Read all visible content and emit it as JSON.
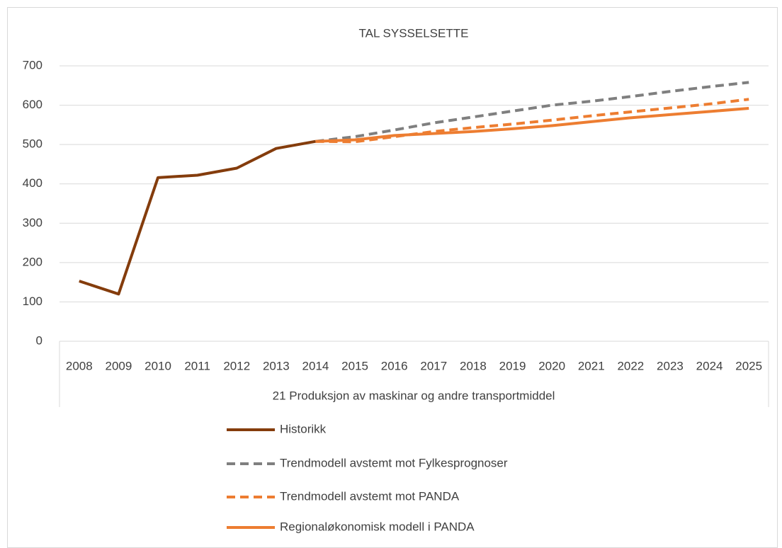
{
  "chart_data": {
    "type": "line",
    "title": "TAL SYSSELSETTE",
    "categories": [
      "2008",
      "2009",
      "2010",
      "2011",
      "2012",
      "2013",
      "2014",
      "2015",
      "2016",
      "2017",
      "2018",
      "2019",
      "2020",
      "2021",
      "2022",
      "2023",
      "2024",
      "2025"
    ],
    "category_group": "21 Produksjon av maskinar og andre transportmiddel",
    "series": [
      {
        "name": "Historikk",
        "color": "#843c0c",
        "dash": false,
        "values": [
          153,
          120,
          416,
          422,
          440,
          490,
          508,
          null,
          null,
          null,
          null,
          null,
          null,
          null,
          null,
          null,
          null,
          null
        ]
      },
      {
        "name": "Trendmodell avstemt mot Fylkesprognoser",
        "color": "#7f7f7f",
        "dash": true,
        "values": [
          null,
          null,
          null,
          null,
          null,
          null,
          508,
          520,
          537,
          555,
          570,
          585,
          600,
          610,
          622,
          635,
          647,
          658
        ]
      },
      {
        "name": "Trendmodell avstemt mot PANDA",
        "color": "#ed7d31",
        "dash": true,
        "values": [
          null,
          null,
          null,
          null,
          null,
          null,
          508,
          507,
          520,
          533,
          543,
          552,
          562,
          573,
          583,
          593,
          603,
          615
        ]
      },
      {
        "name": "Regionaløkonomisk modell i PANDA",
        "color": "#ed7d31",
        "dash": false,
        "values": [
          null,
          null,
          null,
          null,
          null,
          null,
          508,
          512,
          523,
          528,
          533,
          540,
          548,
          558,
          568,
          576,
          584,
          592
        ]
      }
    ],
    "ylim": [
      0,
      700
    ],
    "yticks": [
      0,
      100,
      200,
      300,
      400,
      500,
      600,
      700
    ],
    "grid": true,
    "legend": "bottom"
  }
}
